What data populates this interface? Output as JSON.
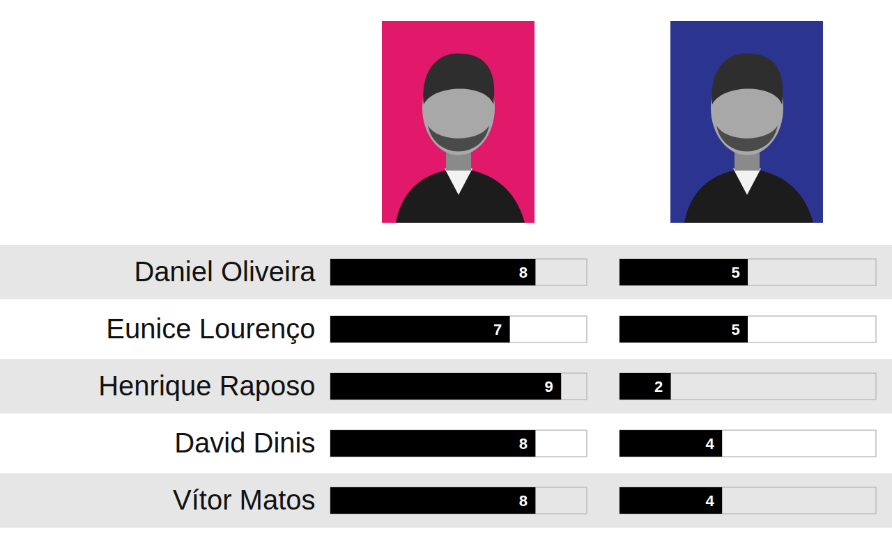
{
  "chart_data": [
    {
      "type": "bar",
      "orientation": "horizontal",
      "categories": [
        "Daniel Oliveira",
        "Eunice Lourenço",
        "Henrique Raposo",
        "David Dinis",
        "Vítor Matos"
      ],
      "values": [
        8,
        7,
        9,
        8,
        8
      ],
      "color": "#000000",
      "xlim": [
        0,
        10
      ],
      "data_labels": true,
      "tick_labels": "y"
    },
    {
      "type": "bar",
      "orientation": "horizontal",
      "categories": [
        "Daniel Oliveira",
        "Eunice Lourenço",
        "Henrique Raposo",
        "David Dinis",
        "Vítor Matos"
      ],
      "values": [
        5,
        5,
        2,
        4,
        4
      ],
      "color": "#000000",
      "xlim": [
        0,
        10
      ],
      "data_labels": true,
      "tick_labels": false
    }
  ]
}
